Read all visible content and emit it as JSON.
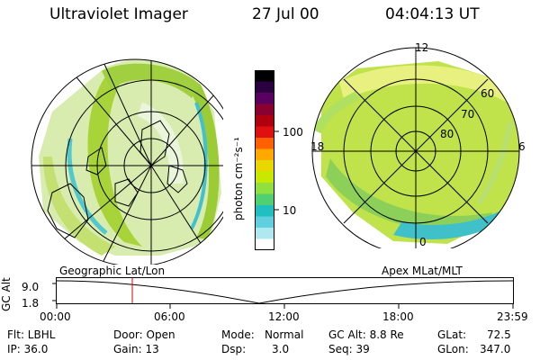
{
  "header": {
    "instrument": "Ultraviolet Imager",
    "date": "27 Jul 00",
    "time": "04:04:13 UT"
  },
  "colorbar": {
    "unit_label": "photon cm⁻²s⁻¹",
    "ticks": [
      "100",
      "10"
    ],
    "colors": [
      "#000000",
      "#2a0040",
      "#5a0060",
      "#8a0030",
      "#b00010",
      "#e01010",
      "#ff6000",
      "#ffa800",
      "#e8d800",
      "#c8e800",
      "#90e040",
      "#50d070",
      "#20c0c0",
      "#60d0e0",
      "#b0e8f0",
      "#ffffff"
    ]
  },
  "left_panel": {
    "caption": "Geographic Lat/Lon"
  },
  "right_panel": {
    "caption": "Apex MLat/MLT",
    "mlt_labels": {
      "top": "12",
      "left": "18",
      "right": "6",
      "bottom": "0"
    },
    "mlat_labels": [
      "60",
      "70",
      "80"
    ]
  },
  "timeline": {
    "y_axis_label": "GC Alt",
    "y_ticks": [
      "9.0",
      "1.8"
    ],
    "x_ticks": [
      "00:00",
      "06:00",
      "12:00",
      "18:00",
      "23:59"
    ],
    "marker_color": "#e00000"
  },
  "info": {
    "col1": [
      "Flt: LBHL",
      "IP: 36.0"
    ],
    "col2": [
      "Door: Open",
      "Gain: 13"
    ],
    "col3_labels": [
      "Mode:",
      "Dsp:"
    ],
    "col3_values": [
      "Normal",
      "3.0"
    ],
    "col4": [
      "GC Alt: 8.8 Re",
      "Seq: 39"
    ],
    "col5_labels": [
      "GLat:",
      "GLon:"
    ],
    "col5_values": [
      "72.5",
      "347.0"
    ]
  }
}
